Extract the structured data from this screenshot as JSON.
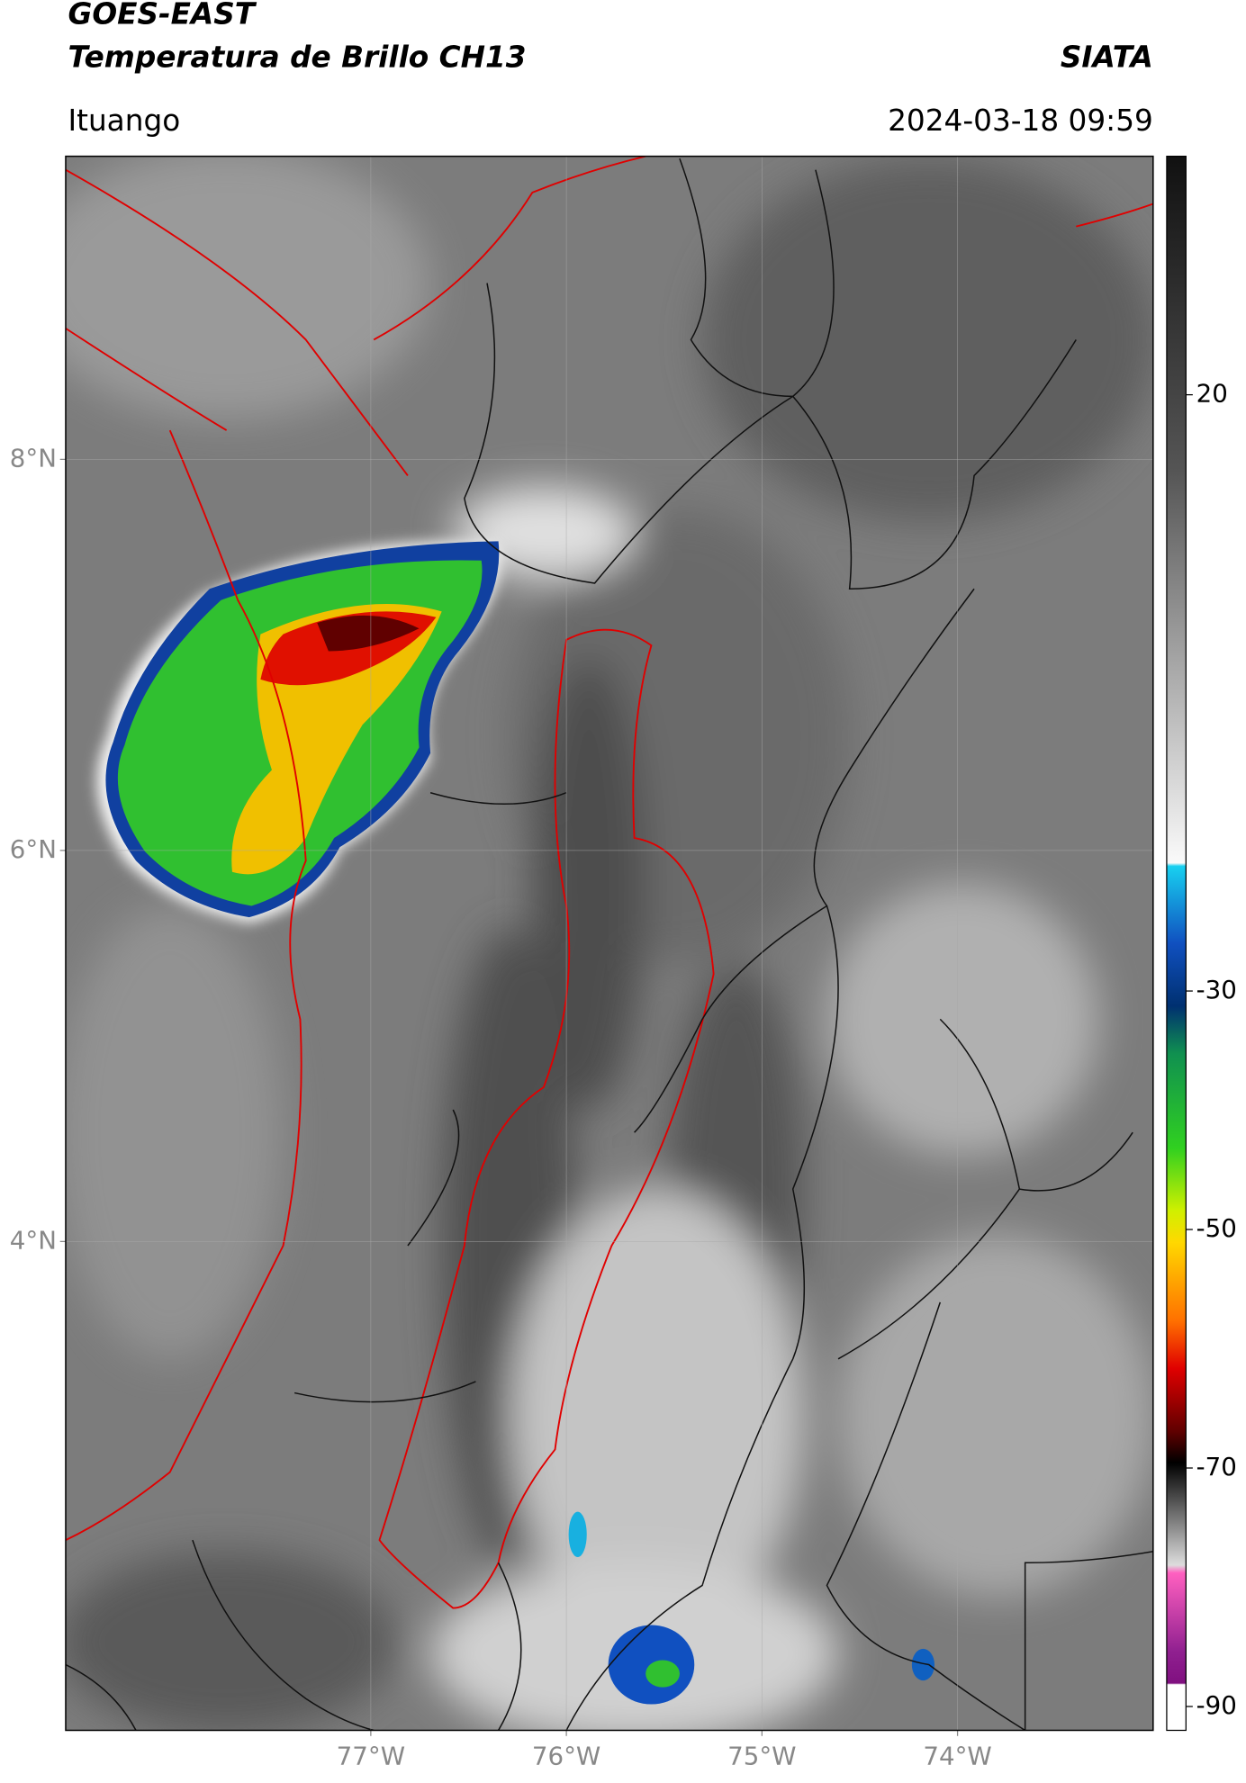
{
  "header": {
    "title": "GOES-EAST",
    "subtitle": "Temperatura de Brillo CH13",
    "source": "SIATA",
    "location": "Ituango",
    "datetime": "2024-03-18 09:59"
  },
  "map": {
    "xlim": [
      -78.56,
      -73.0
    ],
    "ylim": [
      1.5,
      9.55
    ],
    "xticks": [
      {
        "value": -77,
        "label": "77°W"
      },
      {
        "value": -76,
        "label": "76°W"
      },
      {
        "value": -75,
        "label": "75°W"
      },
      {
        "value": -74,
        "label": "74°W"
      }
    ],
    "yticks": [
      {
        "value": 8,
        "label": "8°N"
      },
      {
        "value": 6,
        "label": "6°N"
      },
      {
        "value": 4,
        "label": "4°N"
      }
    ]
  },
  "colorbar": {
    "lim": [
      -92,
      40
    ],
    "ticks": [
      20,
      -30,
      -50,
      -70,
      -90
    ]
  }
}
